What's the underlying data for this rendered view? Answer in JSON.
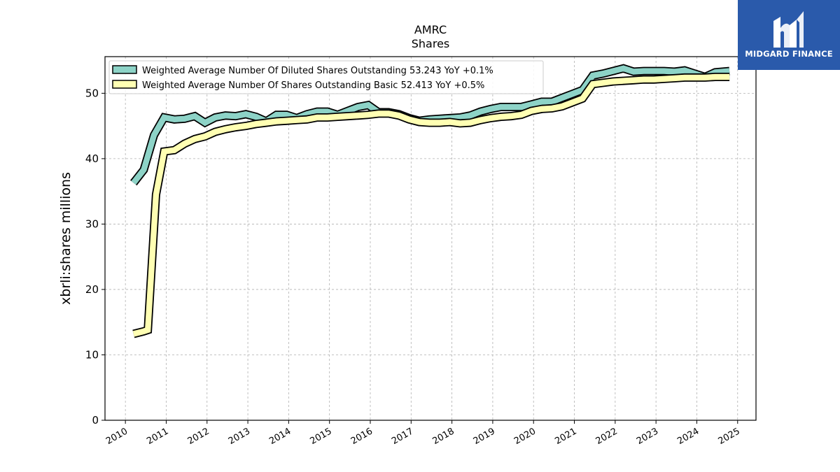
{
  "brand": {
    "name": "MIDGARD FINANCE",
    "color": "#2a5aab"
  },
  "chart_data": {
    "type": "line",
    "title": "AMRC",
    "subtitle": "Shares",
    "xlabel": "",
    "ylabel": "xbrli:shares millions",
    "xlim": [
      2009.5,
      2025.45
    ],
    "ylim": [
      0,
      55.6
    ],
    "yticks": [
      0,
      10,
      20,
      30,
      40,
      50
    ],
    "xticks": [
      2010,
      2011,
      2012,
      2013,
      2014,
      2015,
      2016,
      2017,
      2018,
      2019,
      2020,
      2021,
      2022,
      2023,
      2024,
      2025
    ],
    "xtick_labels": [
      "2010",
      "2011",
      "2012",
      "2013",
      "2014",
      "2015",
      "2016",
      "2017",
      "2018",
      "2019",
      "2020",
      "2021",
      "2022",
      "2023",
      "2024",
      "2025"
    ],
    "grid": true,
    "legend_position": "top-left",
    "series": [
      {
        "name": "Weighted Average Number Of Diluted Shares Outstanding",
        "legend_label": "Weighted Average Number Of Diluted Shares Outstanding  53.243 YoY +0.1%",
        "color": "#8dd3c7",
        "points": [
          [
            2010.2,
            36.3
          ],
          [
            2010.45,
            38.3
          ],
          [
            2010.7,
            43.6
          ],
          [
            2010.95,
            46.3
          ],
          [
            2011.2,
            46.0
          ],
          [
            2011.45,
            46.1
          ],
          [
            2011.7,
            46.5
          ],
          [
            2011.95,
            45.5
          ],
          [
            2012.2,
            46.3
          ],
          [
            2012.45,
            46.6
          ],
          [
            2012.7,
            46.5
          ],
          [
            2012.95,
            46.8
          ],
          [
            2013.2,
            46.4
          ],
          [
            2013.45,
            45.7
          ],
          [
            2013.7,
            46.7
          ],
          [
            2013.95,
            46.7
          ],
          [
            2014.2,
            46.2
          ],
          [
            2014.45,
            46.8
          ],
          [
            2014.7,
            47.2
          ],
          [
            2014.95,
            47.2
          ],
          [
            2015.2,
            46.7
          ],
          [
            2015.45,
            47.3
          ],
          [
            2015.7,
            47.9
          ],
          [
            2015.95,
            48.2
          ],
          [
            2016.2,
            47.1
          ],
          [
            2016.45,
            47.1
          ],
          [
            2016.7,
            46.8
          ],
          [
            2016.95,
            46.2
          ],
          [
            2017.2,
            45.8
          ],
          [
            2017.45,
            46.0
          ],
          [
            2017.7,
            46.1
          ],
          [
            2017.95,
            46.2
          ],
          [
            2018.2,
            46.3
          ],
          [
            2018.45,
            46.6
          ],
          [
            2018.7,
            47.2
          ],
          [
            2018.95,
            47.6
          ],
          [
            2019.2,
            47.9
          ],
          [
            2019.45,
            47.9
          ],
          [
            2019.7,
            47.9
          ],
          [
            2019.95,
            48.3
          ],
          [
            2020.2,
            48.7
          ],
          [
            2020.45,
            48.7
          ],
          [
            2020.7,
            49.3
          ],
          [
            2020.95,
            49.9
          ],
          [
            2021.2,
            50.5
          ],
          [
            2021.45,
            52.7
          ],
          [
            2021.7,
            53.0
          ],
          [
            2021.95,
            53.4
          ],
          [
            2022.2,
            53.8
          ],
          [
            2022.45,
            53.3
          ],
          [
            2022.7,
            53.4
          ],
          [
            2022.95,
            53.4
          ],
          [
            2023.2,
            53.4
          ],
          [
            2023.45,
            53.3
          ],
          [
            2023.7,
            53.5
          ],
          [
            2023.95,
            53.0
          ],
          [
            2024.2,
            52.5
          ],
          [
            2024.45,
            53.2
          ],
          [
            2024.8,
            53.4
          ]
        ]
      },
      {
        "name": "Weighted Average Number Of Shares Outstanding Basic",
        "legend_label": "Weighted Average Number Of Shares Outstanding Basic  52.413 YoY +0.5%",
        "color": "#ffffb3",
        "points": [
          [
            2010.2,
            13.2
          ],
          [
            2010.45,
            13.6
          ],
          [
            2010.55,
            13.8
          ],
          [
            2010.75,
            34.5
          ],
          [
            2010.95,
            41.1
          ],
          [
            2011.2,
            41.3
          ],
          [
            2011.45,
            42.3
          ],
          [
            2011.7,
            43.0
          ],
          [
            2011.95,
            43.4
          ],
          [
            2012.2,
            44.1
          ],
          [
            2012.45,
            44.5
          ],
          [
            2012.7,
            44.8
          ],
          [
            2012.95,
            45.0
          ],
          [
            2013.2,
            45.3
          ],
          [
            2013.45,
            45.5
          ],
          [
            2013.7,
            45.7
          ],
          [
            2013.95,
            45.8
          ],
          [
            2014.2,
            45.9
          ],
          [
            2014.45,
            46.0
          ],
          [
            2014.7,
            46.3
          ],
          [
            2014.95,
            46.3
          ],
          [
            2015.2,
            46.4
          ],
          [
            2015.45,
            46.5
          ],
          [
            2015.7,
            46.6
          ],
          [
            2015.95,
            46.7
          ],
          [
            2016.2,
            46.9
          ],
          [
            2016.45,
            46.9
          ],
          [
            2016.7,
            46.6
          ],
          [
            2016.95,
            46.0
          ],
          [
            2017.2,
            45.6
          ],
          [
            2017.45,
            45.5
          ],
          [
            2017.7,
            45.5
          ],
          [
            2017.95,
            45.6
          ],
          [
            2018.2,
            45.4
          ],
          [
            2018.45,
            45.5
          ],
          [
            2018.7,
            45.9
          ],
          [
            2018.95,
            46.2
          ],
          [
            2019.2,
            46.4
          ],
          [
            2019.45,
            46.5
          ],
          [
            2019.7,
            46.7
          ],
          [
            2019.95,
            47.3
          ],
          [
            2020.2,
            47.6
          ],
          [
            2020.45,
            47.7
          ],
          [
            2020.7,
            48.0
          ],
          [
            2020.95,
            48.6
          ],
          [
            2021.2,
            49.2
          ],
          [
            2021.45,
            51.4
          ],
          [
            2021.7,
            51.6
          ],
          [
            2021.95,
            51.8
          ],
          [
            2022.2,
            51.9
          ],
          [
            2022.45,
            52.0
          ],
          [
            2022.7,
            52.1
          ],
          [
            2022.95,
            52.1
          ],
          [
            2023.2,
            52.2
          ],
          [
            2023.45,
            52.3
          ],
          [
            2023.7,
            52.4
          ],
          [
            2023.95,
            52.4
          ],
          [
            2024.2,
            52.4
          ],
          [
            2024.45,
            52.5
          ],
          [
            2024.8,
            52.5
          ]
        ]
      }
    ]
  }
}
